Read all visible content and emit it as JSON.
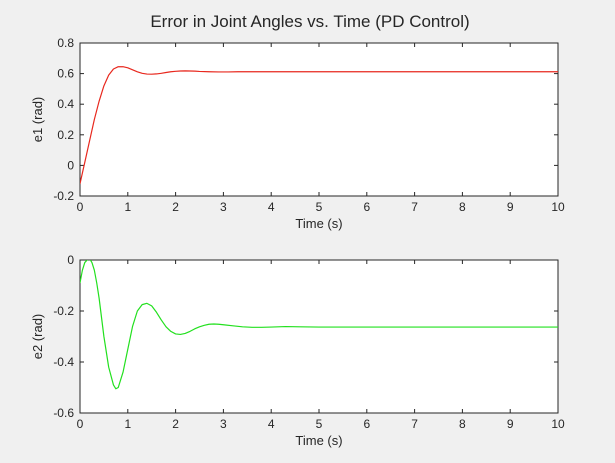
{
  "figure_title": "Error in Joint Angles vs. Time (PD Control)",
  "chart_data": [
    {
      "type": "line",
      "xlabel": "Time (s)",
      "ylabel": "e1 (rad)",
      "xlim": [
        0,
        10
      ],
      "ylim": [
        -0.2,
        0.8
      ],
      "xticks": [
        "0",
        "1",
        "2",
        "3",
        "4",
        "5",
        "6",
        "7",
        "8",
        "9",
        "10"
      ],
      "yticks": [
        "-0.2",
        "0",
        "0.2",
        "0.4",
        "0.6",
        "0.8"
      ],
      "grid": false,
      "color": "#e8281e",
      "series": [
        {
          "x": [
            0,
            0.05,
            0.1,
            0.2,
            0.3,
            0.4,
            0.5,
            0.6,
            0.7,
            0.8,
            0.9,
            1.0,
            1.1,
            1.2,
            1.3,
            1.4,
            1.5,
            1.6,
            1.7,
            1.8,
            1.9,
            2.0,
            2.1,
            2.2,
            2.3,
            2.4,
            2.5,
            2.7,
            2.9,
            3.1,
            3.3,
            3.5,
            4.0,
            4.5,
            5.0,
            6.0,
            7.0,
            8.0,
            9.0,
            10.0
          ],
          "values": [
            -0.12,
            -0.05,
            0.02,
            0.16,
            0.3,
            0.42,
            0.52,
            0.59,
            0.63,
            0.645,
            0.645,
            0.638,
            0.625,
            0.612,
            0.602,
            0.597,
            0.596,
            0.598,
            0.602,
            0.607,
            0.612,
            0.615,
            0.617,
            0.618,
            0.617,
            0.616,
            0.614,
            0.612,
            0.611,
            0.611,
            0.612,
            0.612,
            0.612,
            0.612,
            0.612,
            0.612,
            0.612,
            0.612,
            0.612,
            0.612
          ]
        }
      ]
    },
    {
      "type": "line",
      "xlabel": "Time (s)",
      "ylabel": "e2 (rad)",
      "xlim": [
        0,
        10
      ],
      "ylim": [
        -0.6,
        0
      ],
      "xticks": [
        "0",
        "1",
        "2",
        "3",
        "4",
        "5",
        "6",
        "7",
        "8",
        "9",
        "10"
      ],
      "yticks": [
        "-0.6",
        "-0.4",
        "-0.2",
        "0"
      ],
      "grid": false,
      "color": "#22e01e",
      "series": [
        {
          "x": [
            0,
            0.05,
            0.1,
            0.15,
            0.2,
            0.25,
            0.3,
            0.35,
            0.4,
            0.5,
            0.6,
            0.7,
            0.75,
            0.8,
            0.9,
            1.0,
            1.1,
            1.2,
            1.3,
            1.4,
            1.5,
            1.6,
            1.7,
            1.8,
            1.9,
            2.0,
            2.1,
            2.2,
            2.3,
            2.4,
            2.5,
            2.6,
            2.7,
            2.8,
            2.9,
            3.0,
            3.2,
            3.4,
            3.6,
            3.8,
            4.0,
            4.3,
            4.6,
            5.0,
            6.0,
            7.0,
            8.0,
            9.0,
            10.0
          ],
          "values": [
            -0.09,
            -0.04,
            -0.01,
            0.0,
            0.005,
            -0.01,
            -0.04,
            -0.09,
            -0.15,
            -0.3,
            -0.42,
            -0.49,
            -0.505,
            -0.5,
            -0.44,
            -0.35,
            -0.26,
            -0.2,
            -0.175,
            -0.17,
            -0.18,
            -0.205,
            -0.235,
            -0.262,
            -0.28,
            -0.29,
            -0.292,
            -0.288,
            -0.28,
            -0.27,
            -0.262,
            -0.256,
            -0.252,
            -0.251,
            -0.252,
            -0.254,
            -0.258,
            -0.262,
            -0.264,
            -0.264,
            -0.263,
            -0.261,
            -0.262,
            -0.263,
            -0.263,
            -0.263,
            -0.263,
            -0.263,
            -0.263
          ]
        }
      ]
    }
  ]
}
